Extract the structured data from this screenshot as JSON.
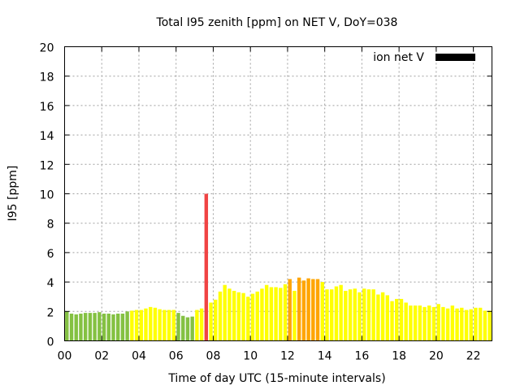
{
  "chart_data": {
    "type": "bar",
    "title": "Total I95 zenith [ppm] on NET V, DoY=038",
    "xlabel": "Time of day UTC (15-minute intervals)",
    "ylabel": "I95 [ppm]",
    "ylim": [
      0,
      20
    ],
    "xlim_hours": [
      0,
      23
    ],
    "yticks": [
      "0",
      "2",
      "4",
      "6",
      "8",
      "10",
      "12",
      "14",
      "16",
      "18",
      "20"
    ],
    "xticks": [
      "00",
      "02",
      "04",
      "06",
      "08",
      "10",
      "12",
      "14",
      "16",
      "18",
      "20",
      "22"
    ],
    "grid": true,
    "legend": {
      "label": "ion net V",
      "position": "top-right",
      "color": "#000000"
    },
    "interval_minutes": 15,
    "colors": {
      "green": "#84c142",
      "yellow": "#ffff00",
      "orange": "#ffa500",
      "red": "#f04444"
    },
    "values": [
      2.0,
      1.85,
      1.8,
      1.85,
      1.9,
      1.9,
      1.9,
      1.95,
      1.85,
      1.85,
      1.8,
      1.85,
      1.85,
      2.0,
      2.05,
      2.1,
      2.1,
      2.2,
      2.3,
      2.25,
      2.15,
      2.1,
      2.1,
      2.1,
      1.9,
      1.7,
      1.6,
      1.65,
      2.1,
      2.2,
      10.0,
      2.6,
      2.8,
      3.35,
      3.8,
      3.55,
      3.4,
      3.3,
      3.25,
      3.0,
      3.2,
      3.35,
      3.55,
      3.8,
      3.65,
      3.65,
      3.6,
      3.85,
      4.2,
      3.4,
      4.3,
      4.1,
      4.25,
      4.2,
      4.2,
      4.0,
      3.5,
      3.5,
      3.7,
      3.8,
      3.4,
      3.5,
      3.55,
      3.3,
      3.55,
      3.5,
      3.5,
      3.15,
      3.3,
      3.1,
      2.7,
      2.85,
      2.85,
      2.6,
      2.4,
      2.4,
      2.4,
      2.3,
      2.4,
      2.3,
      2.5,
      2.3,
      2.2,
      2.4,
      2.2,
      2.25,
      2.1,
      2.15,
      2.25,
      2.25,
      2.05,
      2.05
    ],
    "bar_colors": [
      "green",
      "green",
      "green",
      "green",
      "green",
      "green",
      "green",
      "green",
      "green",
      "green",
      "green",
      "green",
      "green",
      "green",
      "yellow",
      "yellow",
      "yellow",
      "yellow",
      "yellow",
      "yellow",
      "yellow",
      "yellow",
      "yellow",
      "yellow",
      "green",
      "green",
      "green",
      "green",
      "yellow",
      "yellow",
      "red",
      "yellow",
      "yellow",
      "yellow",
      "yellow",
      "yellow",
      "yellow",
      "yellow",
      "yellow",
      "yellow",
      "yellow",
      "yellow",
      "yellow",
      "yellow",
      "yellow",
      "yellow",
      "yellow",
      "yellow",
      "orange",
      "yellow",
      "orange",
      "orange",
      "orange",
      "orange",
      "orange",
      "yellow",
      "yellow",
      "yellow",
      "yellow",
      "yellow",
      "yellow",
      "yellow",
      "yellow",
      "yellow",
      "yellow",
      "yellow",
      "yellow",
      "yellow",
      "yellow",
      "yellow",
      "yellow",
      "yellow",
      "yellow",
      "yellow",
      "yellow",
      "yellow",
      "yellow",
      "yellow",
      "yellow",
      "yellow",
      "yellow",
      "yellow",
      "yellow",
      "yellow",
      "yellow",
      "yellow",
      "yellow",
      "yellow",
      "yellow",
      "yellow",
      "yellow",
      "yellow"
    ]
  }
}
